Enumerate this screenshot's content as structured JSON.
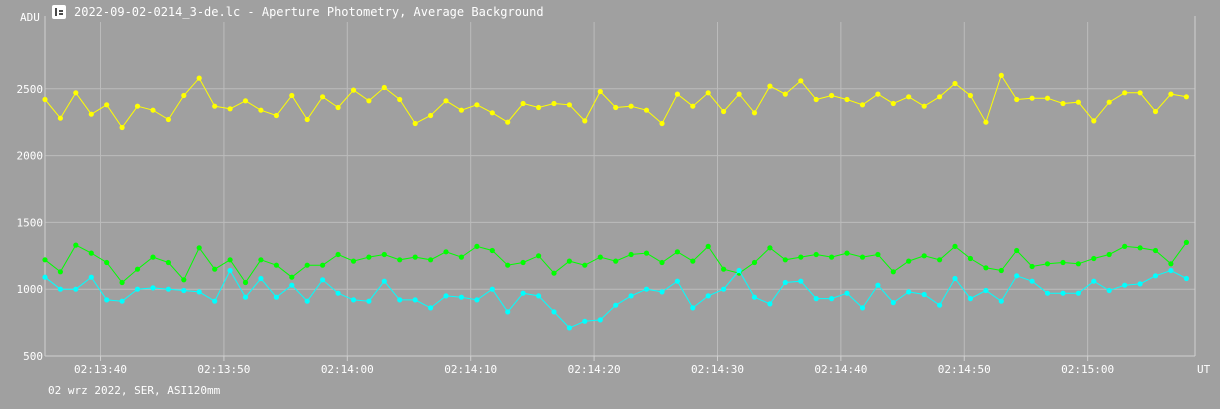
{
  "window": {
    "title": "2022-09-02-0214_3-de.lc - Aperture Photometry, Average Background",
    "icon": "lightcurve-icon"
  },
  "footer": {
    "info": "02 wrz 2022, SER, ASI120mm"
  },
  "chart_data": {
    "type": "line",
    "title": "2022-09-02-0214_3-de.lc - Aperture Photometry, Average Background",
    "ylabel": "ADU",
    "xlabel": "UT",
    "ylim": [
      500,
      3000
    ],
    "xlim": [
      "02:13:35.5",
      "02:15:08.7"
    ],
    "y_ticks": [
      500,
      1000,
      1500,
      2000,
      2500
    ],
    "x_ticks": [
      "02:13:40",
      "02:13:50",
      "02:14:00",
      "02:14:10",
      "02:14:20",
      "02:14:30",
      "02:14:40",
      "02:14:50",
      "02:15:00"
    ],
    "grid": true,
    "colors": {
      "background": "#a0a0a0",
      "grid": "#bcbcbc",
      "axis": "#d0d0d0"
    },
    "x_start": "02:13:35.5",
    "x_step_seconds": 1.25,
    "series": [
      {
        "color": "#ffff00",
        "values": [
          2420,
          2280,
          2470,
          2310,
          2380,
          2210,
          2370,
          2340,
          2270,
          2450,
          2580,
          2370,
          2350,
          2410,
          2340,
          2300,
          2450,
          2270,
          2440,
          2360,
          2490,
          2410,
          2510,
          2420,
          2240,
          2300,
          2410,
          2340,
          2380,
          2320,
          2250,
          2390,
          2360,
          2390,
          2380,
          2260,
          2480,
          2360,
          2370,
          2340,
          2240,
          2460,
          2370,
          2470,
          2330,
          2460,
          2320,
          2520,
          2460,
          2560,
          2420,
          2450,
          2420,
          2380,
          2460,
          2390,
          2440,
          2370,
          2440,
          2540,
          2450,
          2250,
          2600,
          2420,
          2430,
          2430,
          2390,
          2400,
          2260,
          2400,
          2470,
          2470,
          2330,
          2460,
          2440
        ]
      },
      {
        "color": "#00ff00",
        "values": [
          1220,
          1130,
          1330,
          1270,
          1200,
          1050,
          1150,
          1240,
          1200,
          1070,
          1310,
          1150,
          1220,
          1050,
          1220,
          1180,
          1090,
          1180,
          1180,
          1260,
          1210,
          1240,
          1260,
          1220,
          1240,
          1220,
          1280,
          1240,
          1320,
          1290,
          1180,
          1200,
          1250,
          1120,
          1210,
          1180,
          1240,
          1210,
          1260,
          1270,
          1200,
          1280,
          1210,
          1320,
          1150,
          1120,
          1200,
          1310,
          1220,
          1240,
          1260,
          1240,
          1270,
          1240,
          1260,
          1130,
          1210,
          1250,
          1220,
          1320,
          1230,
          1160,
          1140,
          1290,
          1170,
          1190,
          1200,
          1190,
          1230,
          1260,
          1320,
          1310,
          1290,
          1190,
          1350
        ]
      },
      {
        "color": "#00ffff",
        "values": [
          1090,
          1000,
          1000,
          1090,
          920,
          910,
          1000,
          1010,
          1000,
          990,
          980,
          910,
          1140,
          940,
          1080,
          940,
          1030,
          910,
          1070,
          970,
          920,
          910,
          1060,
          920,
          920,
          860,
          950,
          940,
          920,
          1000,
          830,
          970,
          950,
          830,
          710,
          760,
          770,
          880,
          950,
          1000,
          980,
          1060,
          860,
          950,
          1000,
          1140,
          940,
          890,
          1050,
          1060,
          930,
          930,
          970,
          860,
          1030,
          900,
          980,
          960,
          880,
          1080,
          930,
          990,
          910,
          1100,
          1060,
          970,
          970,
          970,
          1060,
          990,
          1030,
          1040,
          1100,
          1140,
          1080
        ]
      }
    ]
  }
}
